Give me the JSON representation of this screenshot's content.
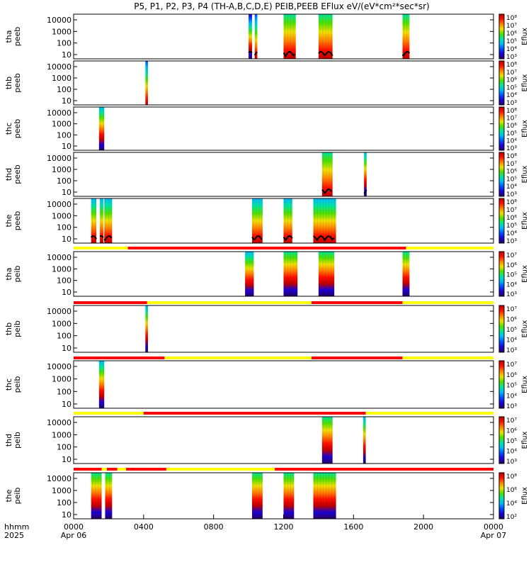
{
  "title": "P5, P1, P2, P3, P4 (TH-A,B,C,D,E) PEIB,PEEB EFlux eV/(eV*cm²*sec*sr)",
  "time_axis": {
    "row_labels": [
      "hhmm",
      "2025"
    ],
    "ticks": [
      {
        "label": "0000",
        "sub": "Apr 06",
        "hour": 0
      },
      {
        "label": "0400",
        "sub": "",
        "hour": 4
      },
      {
        "label": "0800",
        "sub": "",
        "hour": 8
      },
      {
        "label": "1200",
        "sub": "",
        "hour": 12
      },
      {
        "label": "1600",
        "sub": "",
        "hour": 16
      },
      {
        "label": "2000",
        "sub": "",
        "hour": 20
      },
      {
        "label": "0000",
        "sub": "Apr 07",
        "hour": 24
      }
    ]
  },
  "colorbar_label": "Eflux",
  "colors": {
    "bar_red": "#ff0000",
    "bar_yellow": "#ffff00",
    "colormap": [
      "#2a0060",
      "#1a00d8",
      "#0050ff",
      "#00b8ff",
      "#00e6a0",
      "#50e000",
      "#f0e000",
      "#ff8000",
      "#ff1000",
      "#c00000"
    ]
  },
  "chart_data": {
    "type": "heatmap",
    "panels": [
      {
        "id": "tha-peeb",
        "ylabel": [
          "tha",
          "peeb"
        ],
        "yticks": [
          "10000",
          "1000",
          "100",
          "10"
        ],
        "cbar": [
          "10⁸",
          "10⁷",
          "10⁶",
          "10⁵",
          "10⁴",
          "10³"
        ],
        "bar": null,
        "line": true,
        "blocks": [
          [
            10.0,
            10.2,
            -0.2,
            0.3
          ],
          [
            10.35,
            10.5,
            0.1,
            0.2
          ],
          [
            12.0,
            12.7,
            0.5,
            0
          ],
          [
            14.0,
            14.8,
            0.5,
            0
          ],
          [
            18.8,
            19.2,
            0.6,
            0.1
          ]
        ]
      },
      {
        "id": "thb-peeb",
        "ylabel": [
          "thb",
          "peeb"
        ],
        "yticks": [
          "10000",
          "1000",
          "100",
          "10"
        ],
        "cbar": [
          "10⁸",
          "10⁷",
          "10⁶",
          "10⁵",
          "10⁴",
          "10³"
        ],
        "bar": null,
        "line": false,
        "blocks": [
          [
            4.1,
            4.25,
            0.1,
            0.1
          ]
        ]
      },
      {
        "id": "thc-peeb",
        "ylabel": [
          "thc",
          "peeb"
        ],
        "yticks": [
          "10000",
          "1000",
          "100",
          "10"
        ],
        "cbar": [
          "10⁸",
          "10⁷",
          "10⁶",
          "10⁵",
          "10⁴",
          "10³"
        ],
        "bar": null,
        "line": false,
        "blocks": [
          [
            1.45,
            1.75,
            0.3,
            0.4
          ]
        ]
      },
      {
        "id": "thd-peeb",
        "ylabel": [
          "thd",
          "peeb"
        ],
        "yticks": [
          "10000",
          "1000",
          "100",
          "10"
        ],
        "cbar": [
          "10⁸",
          "10⁷",
          "10⁶",
          "10⁵",
          "10⁴",
          "10³"
        ],
        "bar": null,
        "line": true,
        "blocks": [
          [
            14.2,
            14.8,
            0.6,
            0
          ],
          [
            16.6,
            16.75,
            0.3,
            0.5
          ]
        ]
      },
      {
        "id": "the-peeb",
        "ylabel": [
          "the",
          "peeb"
        ],
        "yticks": [
          "10000",
          "1000",
          "100",
          "10"
        ],
        "cbar": [
          "10⁸",
          "10⁷",
          "10⁶",
          "10⁵",
          "10⁴",
          "10³"
        ],
        "bar": null,
        "line": true,
        "blocks": [
          [
            1.0,
            1.3,
            0.2,
            0
          ],
          [
            1.5,
            1.7,
            0.2,
            0
          ],
          [
            1.75,
            2.2,
            0.2,
            0
          ],
          [
            10.2,
            10.8,
            0.3,
            0.2
          ],
          [
            12.0,
            12.5,
            0.3,
            0.2
          ],
          [
            13.7,
            15.0,
            0.4,
            0.2
          ]
        ]
      },
      {
        "id": "tha-peib",
        "ylabel": [
          "tha",
          "peib"
        ],
        "yticks": [
          "10000",
          "1000",
          "100",
          "10"
        ],
        "cbar": [
          "10⁷",
          "10⁶",
          "10⁵",
          "10⁴",
          "10³"
        ],
        "bar": [
          [
            0,
            3.1,
            "y"
          ],
          [
            3.1,
            19.0,
            "r"
          ],
          [
            19.0,
            24,
            "y"
          ]
        ],
        "line": false,
        "blocks": [
          [
            9.8,
            10.3,
            0.4,
            0.4
          ],
          [
            12.0,
            12.8,
            0.5,
            0.3
          ],
          [
            14.0,
            14.9,
            0.5,
            0.3
          ],
          [
            18.8,
            19.2,
            0.5,
            0.5
          ]
        ]
      },
      {
        "id": "thb-peib",
        "ylabel": [
          "thb",
          "peib"
        ],
        "yticks": [
          "10000",
          "1000",
          "100",
          "10"
        ],
        "cbar": [
          "10⁷",
          "10⁶",
          "10⁵",
          "10⁴",
          "10³"
        ],
        "bar": [
          [
            0,
            4.2,
            "r"
          ],
          [
            4.2,
            13.6,
            "y"
          ],
          [
            13.6,
            18.8,
            "r"
          ],
          [
            18.8,
            24,
            "y"
          ]
        ],
        "line": false,
        "blocks": [
          [
            4.1,
            4.25,
            0.2,
            0.5
          ]
        ]
      },
      {
        "id": "thc-peib",
        "ylabel": [
          "thc",
          "peib"
        ],
        "yticks": [
          "10000",
          "1000",
          "100",
          "10"
        ],
        "cbar": [
          "10⁷",
          "10⁶",
          "10⁵",
          "10⁴",
          "10³"
        ],
        "bar": [
          [
            0,
            5.2,
            "r"
          ],
          [
            5.2,
            13.6,
            "y"
          ],
          [
            13.6,
            18.8,
            "r"
          ],
          [
            18.8,
            24,
            "y"
          ]
        ],
        "line": false,
        "blocks": [
          [
            1.45,
            1.75,
            0.4,
            0.5
          ]
        ]
      },
      {
        "id": "thd-peib",
        "ylabel": [
          "thd",
          "peib"
        ],
        "yticks": [
          "10000",
          "1000",
          "100",
          "10"
        ],
        "cbar": [
          "10⁷",
          "10⁶",
          "10⁵",
          "10⁴",
          "10³"
        ],
        "bar": [
          [
            0,
            4.0,
            "y"
          ],
          [
            4.0,
            16.7,
            "r"
          ],
          [
            16.7,
            24,
            "y"
          ]
        ],
        "line": false,
        "blocks": [
          [
            14.2,
            14.8,
            0.5,
            0.3
          ],
          [
            16.55,
            16.7,
            0.3,
            0.5
          ]
        ]
      },
      {
        "id": "the-peib",
        "ylabel": [
          "the",
          "peib"
        ],
        "yticks": [
          "10000",
          "1000",
          "100",
          "10"
        ],
        "cbar": [
          "10⁸",
          "10⁶",
          "10⁴",
          "10²"
        ],
        "bar": [
          [
            0,
            1.6,
            "r"
          ],
          [
            1.6,
            1.9,
            "y"
          ],
          [
            1.9,
            2.5,
            "r"
          ],
          [
            2.5,
            3.0,
            "y"
          ],
          [
            3.0,
            5.3,
            "r"
          ],
          [
            5.3,
            11.5,
            "y"
          ],
          [
            11.5,
            24,
            "r"
          ]
        ],
        "line": false,
        "blocks": [
          [
            1.0,
            1.6,
            0.6,
            0.4
          ],
          [
            1.8,
            2.2,
            0.6,
            0.4
          ],
          [
            10.2,
            10.8,
            0.6,
            0.4
          ],
          [
            12.0,
            12.6,
            0.6,
            0.4
          ],
          [
            13.7,
            15.0,
            0.6,
            0.4
          ]
        ]
      }
    ]
  }
}
